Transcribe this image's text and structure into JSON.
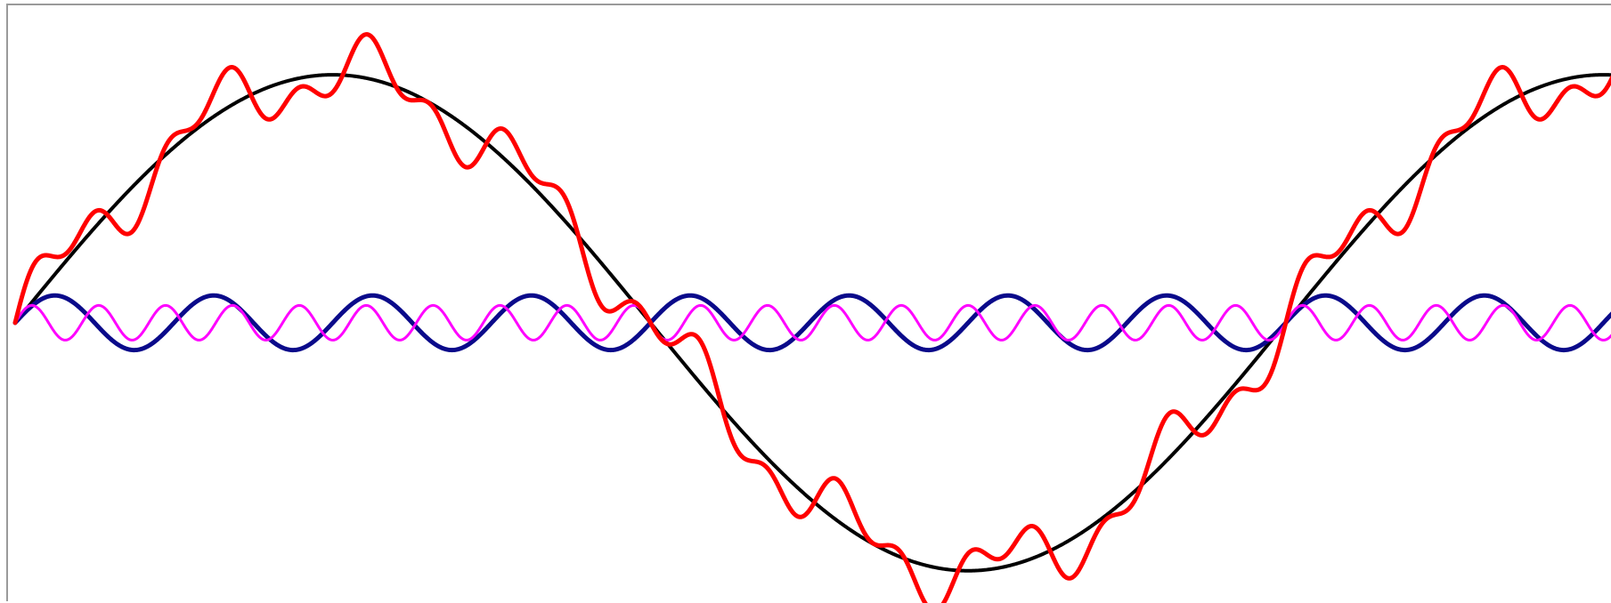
{
  "chart_data": {
    "type": "line",
    "title": "",
    "xlabel": "",
    "ylabel": "",
    "grid": false,
    "legend": "none",
    "x_range": [
      0,
      7.9
    ],
    "y_range": [
      -1.13,
      1.28
    ],
    "x_step": 0.005,
    "series": [
      {
        "color": "#000000",
        "line_width": 4,
        "terms": [
          {
            "amplitude": 1.0,
            "frequency": 1
          }
        ]
      },
      {
        "color": "#0a0a8a",
        "line_width": 5,
        "terms": [
          {
            "amplitude": 0.11,
            "frequency": 8
          }
        ]
      },
      {
        "color": "#ff00ff",
        "line_width": 3,
        "terms": [
          {
            "amplitude": 0.07,
            "frequency": 19
          }
        ]
      },
      {
        "color": "#ff0000",
        "line_width": 5,
        "terms": [
          {
            "amplitude": 1.0,
            "frequency": 1
          },
          {
            "amplitude": 0.11,
            "frequency": 8
          },
          {
            "amplitude": 0.07,
            "frequency": 19
          }
        ]
      }
    ]
  }
}
